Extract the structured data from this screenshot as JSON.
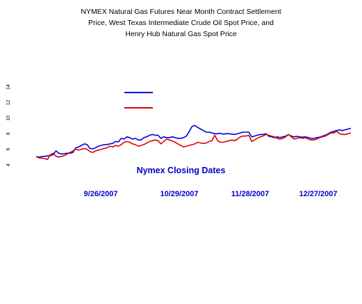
{
  "chart_data": {
    "type": "line",
    "title_lines": [
      "NYMEX Natural Gas Futures Near Month Contract Settlement",
      "Price, West Texas Intermediate Crude Oil Spot Price, and",
      "Henry Hub Natural Gas Spot Price"
    ],
    "xlabel": "Nymex Closing Dates",
    "x_ticks": [
      "9/26/2007",
      "10/29/2007",
      "11/28/2007",
      "12/27/2007"
    ],
    "y_ticks": [
      "14",
      "12",
      "10",
      "8",
      "6",
      "4"
    ],
    "legend": {
      "placement": "top-center",
      "entries": [
        {
          "name": "",
          "color": "#0000dd"
        },
        {
          "name": "",
          "color": "#dd0000"
        }
      ]
    },
    "series": [
      {
        "name": "",
        "color": "#0000dd",
        "values": [
          5.05,
          5.0,
          5.05,
          5.1,
          5.15,
          5.2,
          5.3,
          5.8,
          5.5,
          5.4,
          5.45,
          5.5,
          5.5,
          5.6,
          6.2,
          6.3,
          6.5,
          6.7,
          6.6,
          6.1,
          6.05,
          6.2,
          6.4,
          6.5,
          6.6,
          6.6,
          6.7,
          6.75,
          7.0,
          6.95,
          7.4,
          7.3,
          7.6,
          7.5,
          7.3,
          7.4,
          7.2,
          7.2,
          7.5,
          7.6,
          7.8,
          7.9,
          7.8,
          7.8,
          7.4,
          7.6,
          7.5,
          7.5,
          7.6,
          7.5,
          7.4,
          7.4,
          7.5,
          7.7,
          8.3,
          8.95,
          9.05,
          8.8,
          8.6,
          8.4,
          8.2,
          8.2,
          8.1,
          8.0,
          8.0,
          8.05,
          7.95,
          8.0,
          8.0,
          7.95,
          7.9,
          8.0,
          8.1,
          8.2,
          8.2,
          8.2,
          7.6,
          7.7,
          7.8,
          7.9,
          7.9,
          8.0,
          7.7,
          7.6,
          7.5,
          7.6,
          7.5,
          7.6,
          7.7,
          7.9,
          7.7,
          7.6,
          7.65,
          7.6,
          7.55,
          7.6,
          7.5,
          7.4,
          7.4,
          7.5,
          7.55,
          7.7,
          7.8,
          8.0,
          8.2,
          8.3,
          8.4,
          8.5,
          8.4,
          8.5,
          8.6,
          8.7
        ]
      },
      {
        "name": "",
        "color": "#dd0000",
        "values": [
          5.1,
          4.9,
          4.85,
          4.8,
          4.7,
          5.3,
          5.5,
          5.1,
          5.0,
          5.1,
          5.2,
          5.4,
          5.6,
          5.8,
          6.0,
          5.9,
          6.0,
          6.1,
          6.0,
          5.7,
          5.6,
          5.8,
          5.9,
          6.0,
          6.1,
          6.2,
          6.4,
          6.3,
          6.5,
          6.4,
          6.6,
          6.9,
          7.0,
          6.9,
          6.7,
          6.6,
          6.4,
          6.5,
          6.6,
          6.8,
          7.0,
          7.1,
          7.2,
          7.1,
          6.7,
          7.0,
          7.3,
          7.2,
          7.1,
          6.9,
          6.7,
          6.5,
          6.3,
          6.4,
          6.5,
          6.6,
          6.7,
          6.9,
          6.8,
          6.75,
          6.8,
          7.0,
          7.1,
          7.8,
          7.1,
          6.9,
          6.9,
          7.0,
          7.1,
          7.2,
          7.1,
          7.3,
          7.6,
          7.7,
          7.7,
          7.8,
          7.0,
          7.2,
          7.4,
          7.6,
          7.7,
          7.9,
          7.8,
          7.7,
          7.6,
          7.4,
          7.3,
          7.4,
          7.6,
          7.9,
          7.6,
          7.3,
          7.4,
          7.5,
          7.4,
          7.5,
          7.3,
          7.2,
          7.2,
          7.3,
          7.5,
          7.6,
          7.7,
          7.9,
          8.1,
          8.1,
          8.3,
          8.0,
          7.9,
          7.9,
          8.0,
          8.1
        ]
      }
    ]
  }
}
